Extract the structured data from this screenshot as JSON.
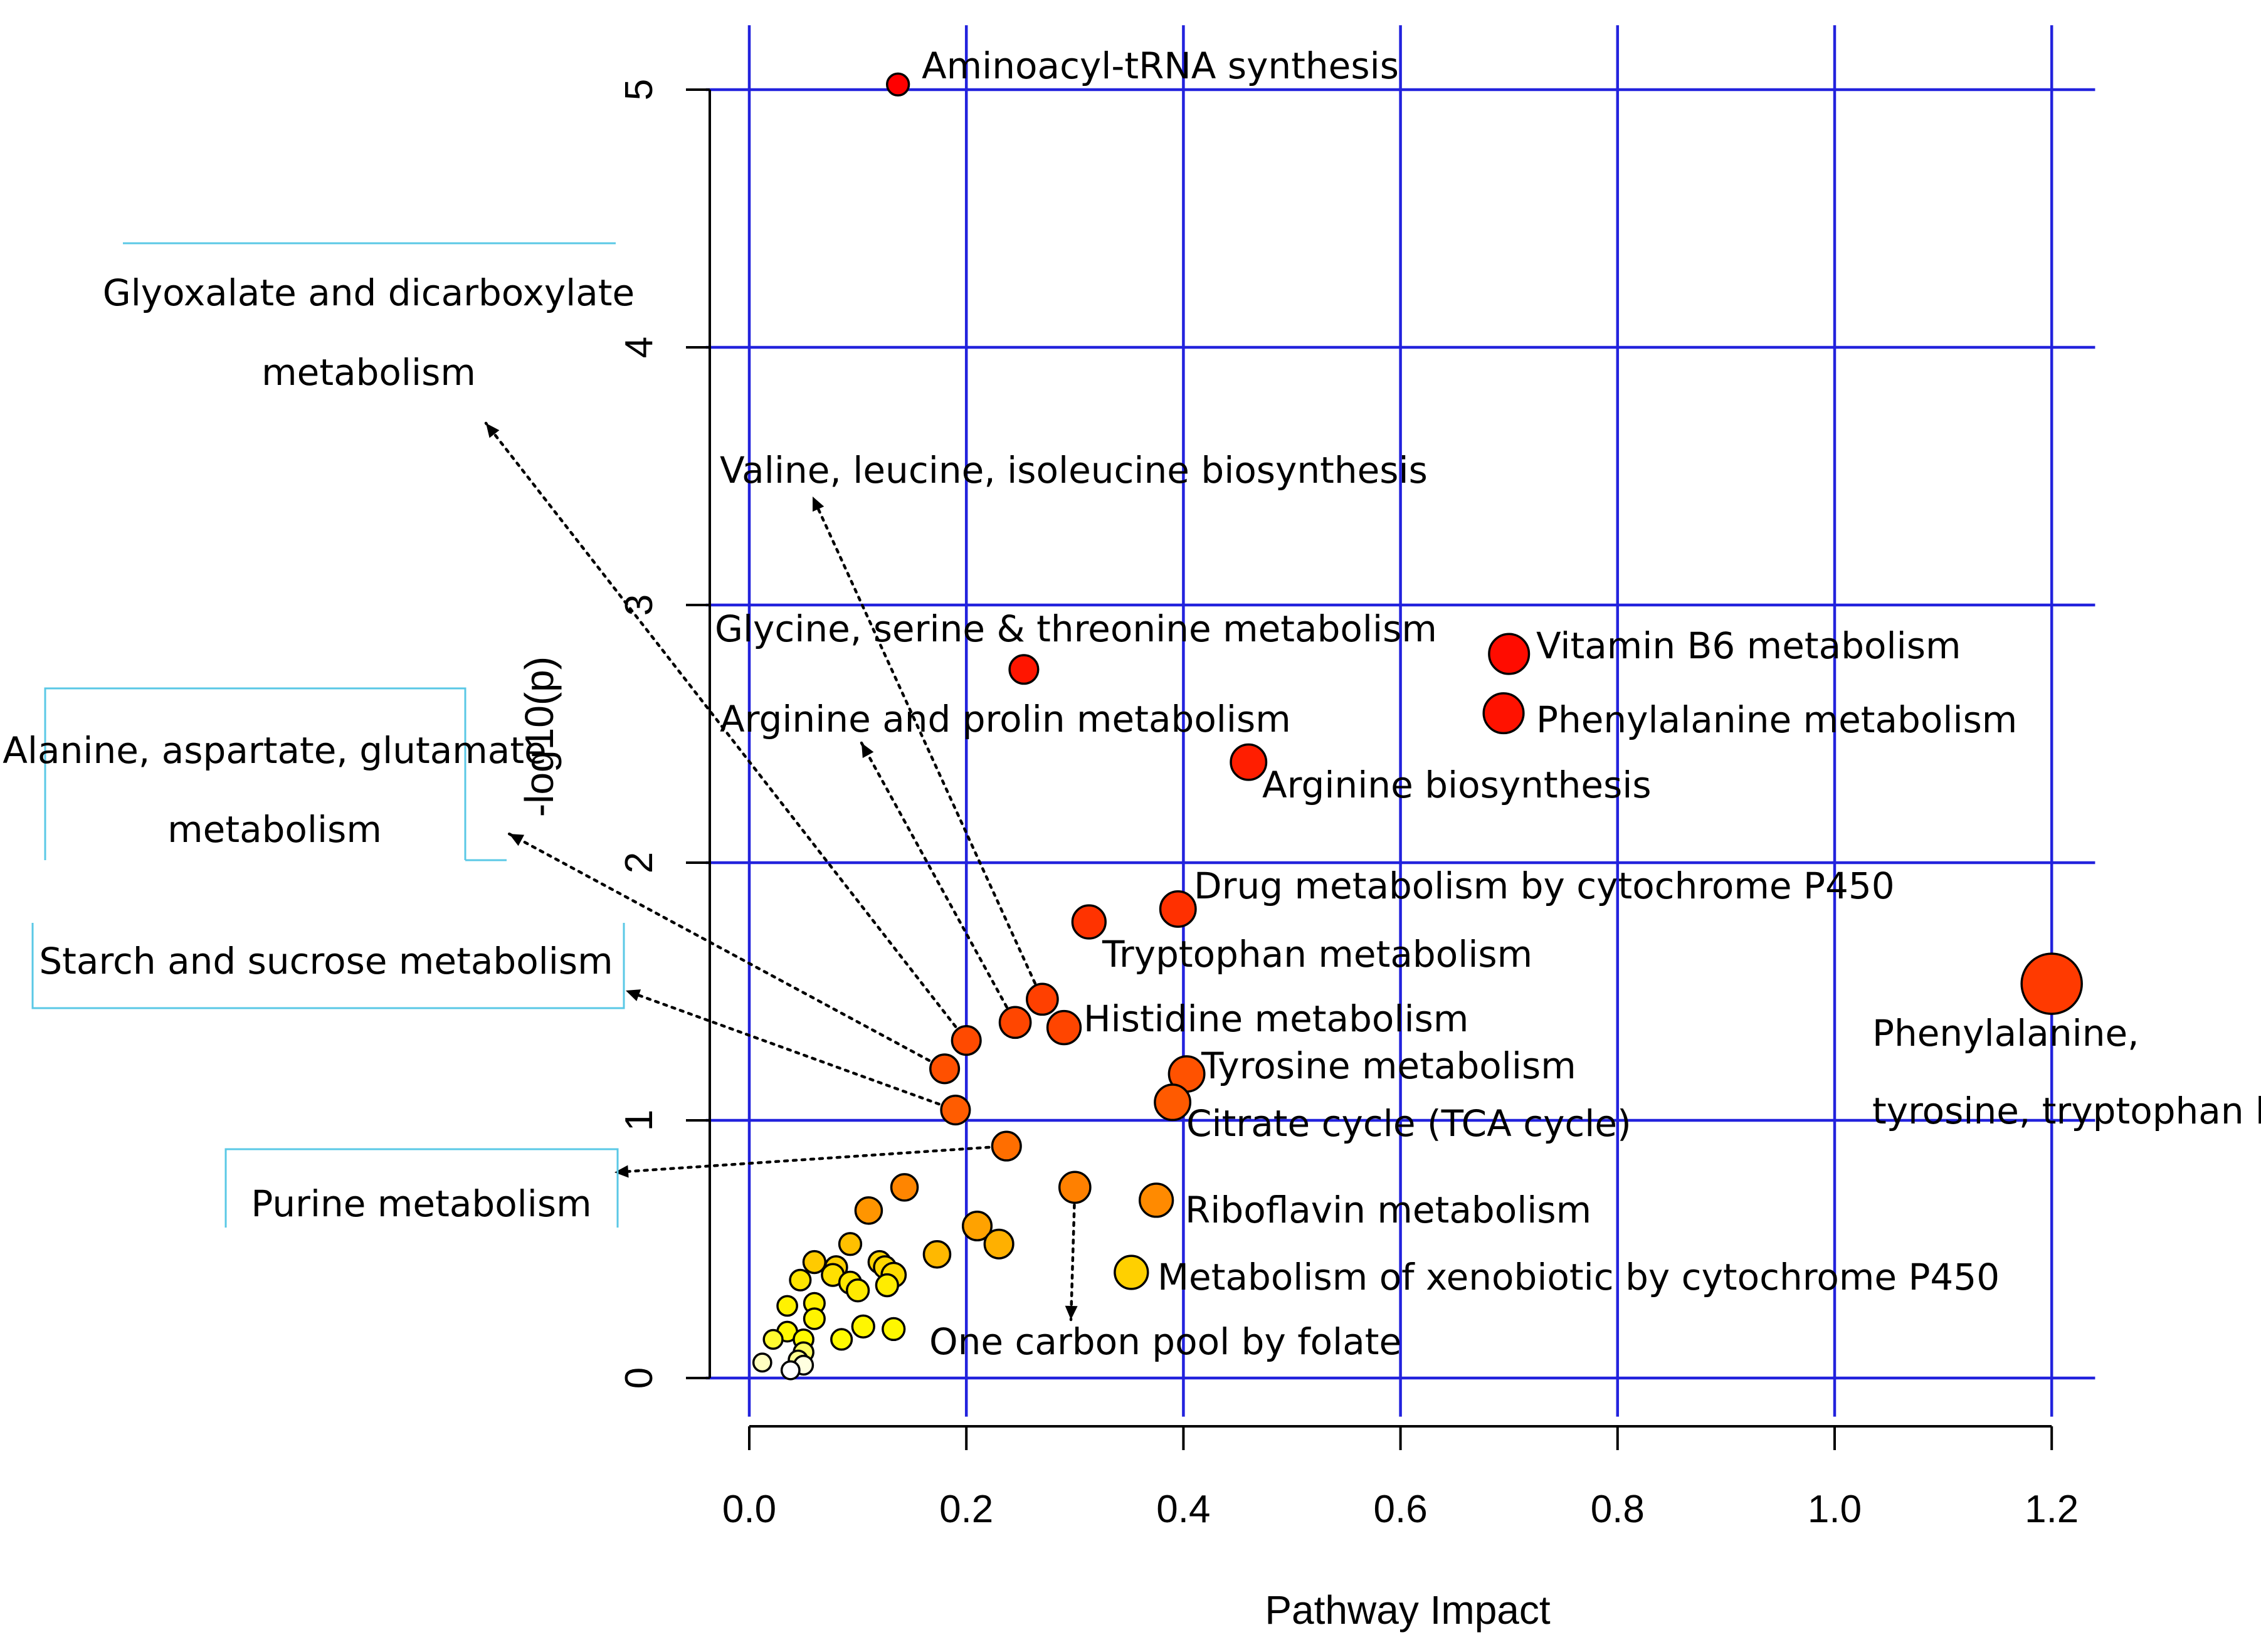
{
  "chart_data": {
    "type": "scatter",
    "xlabel": "Pathway Impact",
    "ylabel": "-log10(p)",
    "xlim": [
      -0.04,
      1.24
    ],
    "ylim": [
      -0.15,
      5.25
    ],
    "x_ticks": [
      0.0,
      0.2,
      0.4,
      0.6,
      0.8,
      1.0,
      1.2
    ],
    "x_tick_labels": [
      "0.0",
      "0.2",
      "0.4",
      "0.6",
      "0.8",
      "1.0",
      "1.2"
    ],
    "y_ticks": [
      0,
      1,
      2,
      3,
      4,
      5
    ],
    "y_tick_labels": [
      "0",
      "1",
      "2",
      "3",
      "4",
      "5"
    ],
    "grid": true,
    "grid_color": "#2222dd",
    "legend": "none",
    "labeled_points": [
      {
        "name": "Aminoacyl-tRNA synthesis",
        "x": 0.137,
        "y": 5.02,
        "size": 0.15,
        "color": "#ff0000"
      },
      {
        "name": "Vitamin B6 metabolism",
        "x": 0.7,
        "y": 2.81,
        "size": 0.55,
        "color": "#ff0c00"
      },
      {
        "name": "Phenylalanine metabolism",
        "x": 0.695,
        "y": 2.58,
        "size": 0.55,
        "color": "#ff1200"
      },
      {
        "name": "Glycine, serine & threonine metabolism",
        "x": 0.253,
        "y": 2.75,
        "size": 0.3,
        "color": "#ff1500"
      },
      {
        "name": "Arginine biosynthesis",
        "x": 0.46,
        "y": 2.39,
        "size": 0.45,
        "color": "#ff1e00"
      },
      {
        "name": "Drug metabolism by cytochrome P450",
        "x": 0.395,
        "y": 1.82,
        "size": 0.45,
        "color": "#ff3000"
      },
      {
        "name": "Tryptophan metabolism",
        "x": 0.313,
        "y": 1.77,
        "size": 0.4,
        "color": "#ff3300"
      },
      {
        "name": "Phenylalanine, tyrosine, tryptophan biosynthesis",
        "x": 1.2,
        "y": 1.53,
        "size": 1.0,
        "color": "#ff3a00"
      },
      {
        "name": "Histidine metabolism",
        "x": 0.29,
        "y": 1.36,
        "size": 0.4,
        "color": "#ff4500"
      },
      {
        "name": "Tyrosine metabolism",
        "x": 0.403,
        "y": 1.18,
        "size": 0.45,
        "color": "#ff5200"
      },
      {
        "name": "Citrate cycle (TCA cycle)",
        "x": 0.39,
        "y": 1.07,
        "size": 0.45,
        "color": "#ff5a00"
      },
      {
        "name": "Riboflavin metabolism",
        "x": 0.375,
        "y": 0.69,
        "size": 0.4,
        "color": "#ff8a00"
      },
      {
        "name": "Metabolism of xenobiotic by cytochrome P450",
        "x": 0.352,
        "y": 0.41,
        "size": 0.4,
        "color": "#ffd000"
      },
      {
        "name": "Valine, leucine, isoleucine biosynthesis",
        "x": 0.27,
        "y": 1.47,
        "size": 0.35,
        "color": "#ff4000"
      },
      {
        "name": "Arginine and prolin metabolism",
        "x": 0.245,
        "y": 1.38,
        "size": 0.35,
        "color": "#ff4600"
      },
      {
        "name": "Glyoxalate and dicarboxylate metabolism",
        "x": 0.2,
        "y": 1.31,
        "size": 0.3,
        "color": "#ff4a00"
      },
      {
        "name": "Alanine, aspartate, glutamate metabolism",
        "x": 0.18,
        "y": 1.2,
        "size": 0.3,
        "color": "#ff5000"
      },
      {
        "name": "Starch and sucrose metabolism",
        "x": 0.19,
        "y": 1.04,
        "size": 0.3,
        "color": "#ff5c00"
      },
      {
        "name": "Purine metabolism",
        "x": 0.237,
        "y": 0.9,
        "size": 0.3,
        "color": "#ff6e00"
      },
      {
        "name": "One carbon pool by folate",
        "x": 0.3,
        "y": 0.74,
        "size": 0.35,
        "color": "#ff8000"
      }
    ],
    "other_points": [
      {
        "x": 0.143,
        "y": 0.74,
        "size": 0.25,
        "color": "#ff8500"
      },
      {
        "x": 0.11,
        "y": 0.65,
        "size": 0.25,
        "color": "#ff9500"
      },
      {
        "x": 0.21,
        "y": 0.59,
        "size": 0.3,
        "color": "#ffa200"
      },
      {
        "x": 0.23,
        "y": 0.52,
        "size": 0.3,
        "color": "#ffb000"
      },
      {
        "x": 0.173,
        "y": 0.48,
        "size": 0.25,
        "color": "#ffb800"
      },
      {
        "x": 0.093,
        "y": 0.52,
        "size": 0.15,
        "color": "#ffc000"
      },
      {
        "x": 0.06,
        "y": 0.45,
        "size": 0.15,
        "color": "#ffca00"
      },
      {
        "x": 0.08,
        "y": 0.43,
        "size": 0.15,
        "color": "#ffd000"
      },
      {
        "x": 0.12,
        "y": 0.45,
        "size": 0.15,
        "color": "#ffd400"
      },
      {
        "x": 0.125,
        "y": 0.43,
        "size": 0.15,
        "color": "#ffd800"
      },
      {
        "x": 0.133,
        "y": 0.4,
        "size": 0.2,
        "color": "#ffdc00"
      },
      {
        "x": 0.077,
        "y": 0.4,
        "size": 0.15,
        "color": "#ffe000"
      },
      {
        "x": 0.047,
        "y": 0.38,
        "size": 0.12,
        "color": "#ffe400"
      },
      {
        "x": 0.093,
        "y": 0.37,
        "size": 0.15,
        "color": "#ffe800"
      },
      {
        "x": 0.1,
        "y": 0.34,
        "size": 0.15,
        "color": "#ffea00"
      },
      {
        "x": 0.127,
        "y": 0.36,
        "size": 0.15,
        "color": "#ffec00"
      },
      {
        "x": 0.06,
        "y": 0.29,
        "size": 0.12,
        "color": "#fff000"
      },
      {
        "x": 0.035,
        "y": 0.28,
        "size": 0.1,
        "color": "#fff200"
      },
      {
        "x": 0.06,
        "y": 0.23,
        "size": 0.12,
        "color": "#fff400"
      },
      {
        "x": 0.105,
        "y": 0.2,
        "size": 0.15,
        "color": "#fff600"
      },
      {
        "x": 0.133,
        "y": 0.19,
        "size": 0.15,
        "color": "#fff700"
      },
      {
        "x": 0.035,
        "y": 0.18,
        "size": 0.1,
        "color": "#fff800"
      },
      {
        "x": 0.05,
        "y": 0.15,
        "size": 0.1,
        "color": "#fff900"
      },
      {
        "x": 0.085,
        "y": 0.15,
        "size": 0.12,
        "color": "#fffa00"
      },
      {
        "x": 0.022,
        "y": 0.15,
        "size": 0.08,
        "color": "#fffb30"
      },
      {
        "x": 0.05,
        "y": 0.1,
        "size": 0.1,
        "color": "#fffc60"
      },
      {
        "x": 0.045,
        "y": 0.07,
        "size": 0.08,
        "color": "#fffd90"
      },
      {
        "x": 0.012,
        "y": 0.06,
        "size": 0.06,
        "color": "#fffec0"
      },
      {
        "x": 0.05,
        "y": 0.05,
        "size": 0.08,
        "color": "#ffffe0"
      },
      {
        "x": 0.038,
        "y": 0.03,
        "size": 0.06,
        "color": "#ffffff"
      }
    ]
  }
}
